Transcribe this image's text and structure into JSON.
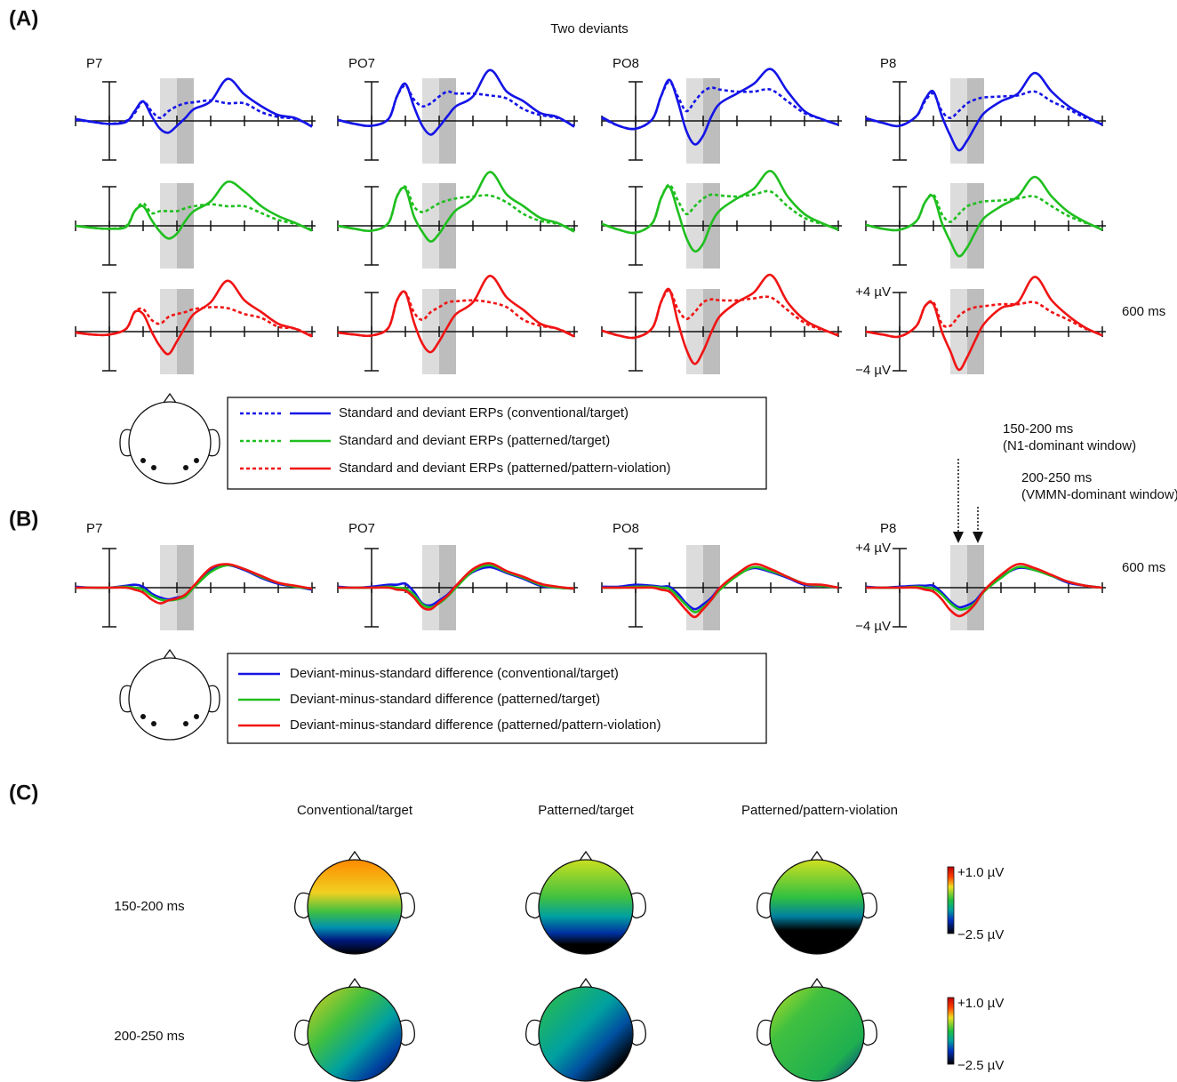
{
  "panel_labels": [
    "(A)",
    "(B)",
    "(C)"
  ],
  "chart_data": [
    {
      "type": "line",
      "title": "Two deviants",
      "electrodes": [
        "P7",
        "PO7",
        "PO8",
        "P8"
      ],
      "x": [
        -100,
        -50,
        0,
        50,
        75,
        100,
        125,
        150,
        175,
        200,
        225,
        250,
        300,
        350,
        400,
        450,
        500,
        550,
        600
      ],
      "xlim": [
        -100,
        600
      ],
      "ylim": [
        -4,
        4
      ],
      "xticks": [
        -100,
        0,
        100,
        200,
        300,
        400,
        500,
        600
      ],
      "xlabel": "600 ms",
      "yticks": [
        {
          "value": 4,
          "label": "+4 µV"
        },
        {
          "value": -4,
          "label": "−4 µV"
        }
      ],
      "windows": [
        [
          150,
          200
        ],
        [
          200,
          250
        ]
      ],
      "series": [
        {
          "name": "Standard and deviant ERPs (conventional/target)",
          "color": "#1414e6",
          "standard": [
            [
              0.1,
              -0.1,
              -0.3,
              0,
              0.8,
              2.0,
              1.0,
              0.3,
              1.0,
              1.5,
              1.8,
              1.9,
              2.1,
              1.8,
              1.8,
              0.9,
              0.4,
              0.2,
              -0.5
            ],
            [
              0.1,
              -0.3,
              -0.5,
              0.2,
              2.5,
              3.6,
              2.2,
              1.5,
              1.8,
              2.5,
              3.0,
              2.8,
              2.8,
              2.6,
              2.3,
              1.2,
              0.6,
              0.3,
              -0.5
            ],
            [
              0.3,
              -0.5,
              -0.8,
              0.2,
              2.5,
              4.0,
              2.5,
              1.0,
              2.0,
              3.0,
              3.4,
              3.2,
              3.0,
              3.0,
              3.2,
              2.0,
              0.8,
              0.2,
              -0.4
            ],
            [
              0.2,
              -0.2,
              -0.5,
              0.5,
              2.0,
              2.8,
              1.0,
              0.3,
              1.0,
              1.8,
              2.2,
              2.4,
              2.5,
              2.6,
              3.0,
              2.0,
              1.2,
              0.3,
              -0.3
            ]
          ],
          "deviant": [
            [
              0.2,
              -0.1,
              -0.3,
              -0.1,
              1.0,
              2.0,
              0.5,
              -0.8,
              -1.2,
              -0.5,
              0.3,
              1.2,
              2.0,
              4.3,
              2.7,
              1.5,
              0.6,
              0.3,
              -0.6
            ],
            [
              0.1,
              -0.3,
              -0.5,
              0.2,
              2.5,
              3.8,
              1.5,
              -0.5,
              -1.4,
              -0.6,
              0.5,
              1.5,
              2.5,
              5.2,
              3.0,
              2.0,
              0.8,
              0.4,
              -0.6
            ],
            [
              0.4,
              -0.5,
              -0.8,
              0.2,
              2.5,
              4.2,
              2.0,
              -1.0,
              -2.4,
              -1.5,
              0.5,
              1.8,
              2.8,
              3.8,
              5.3,
              3.0,
              1.0,
              0.2,
              -0.4
            ],
            [
              0.3,
              -0.2,
              -0.5,
              0.5,
              2.2,
              3.0,
              0.5,
              -1.5,
              -3.0,
              -2.0,
              -0.5,
              0.8,
              2.0,
              2.8,
              4.9,
              3.0,
              1.5,
              0.5,
              -0.4
            ]
          ]
        },
        {
          "name": "Standard and deviant ERPs (patterned/target)",
          "color": "#1fbf1f",
          "standard": [
            [
              0,
              -0.2,
              -0.3,
              0,
              1.5,
              2.3,
              1.3,
              1.5,
              1.5,
              1.5,
              1.8,
              2.0,
              2.2,
              2.0,
              2.0,
              1.3,
              0.6,
              0.2,
              -0.4
            ],
            [
              0,
              -0.3,
              -0.5,
              0.3,
              3.0,
              4.0,
              2.0,
              1.4,
              1.8,
              2.3,
              2.6,
              2.8,
              3.0,
              3.1,
              2.4,
              1.2,
              0.5,
              0.2,
              -0.4
            ],
            [
              0.2,
              -0.4,
              -0.7,
              0.3,
              2.8,
              4.2,
              2.6,
              1.2,
              2.0,
              2.8,
              3.2,
              3.1,
              3.0,
              3.2,
              3.5,
              2.0,
              0.8,
              0.2,
              -0.3
            ],
            [
              0.1,
              -0.3,
              -0.4,
              0.5,
              2.4,
              3.2,
              1.2,
              0.4,
              1.2,
              2.0,
              2.3,
              2.5,
              2.6,
              2.8,
              3.0,
              2.0,
              1.0,
              0.3,
              -0.3
            ]
          ],
          "deviant": [
            [
              0,
              -0.2,
              -0.3,
              -0.1,
              1.5,
              2.0,
              0.6,
              -0.6,
              -1.3,
              -0.8,
              0.5,
              1.5,
              2.5,
              4.5,
              3.5,
              2.0,
              1.0,
              0.3,
              -0.5
            ],
            [
              0,
              -0.3,
              -0.5,
              0.3,
              3.0,
              3.8,
              1.0,
              -0.6,
              -1.6,
              -0.8,
              0.5,
              1.6,
              2.8,
              5.5,
              3.2,
              2.0,
              0.8,
              0.3,
              -0.6
            ],
            [
              0.2,
              -0.4,
              -0.7,
              0.3,
              2.8,
              4.0,
              1.5,
              -1.2,
              -2.6,
              -1.8,
              0.3,
              1.6,
              2.8,
              3.8,
              5.6,
              3.0,
              1.2,
              0.3,
              -0.4
            ],
            [
              0.1,
              -0.3,
              -0.4,
              0.5,
              2.4,
              3.0,
              0.3,
              -1.6,
              -3.1,
              -2.2,
              -0.6,
              0.8,
              2.0,
              3.0,
              5.0,
              3.0,
              1.4,
              0.4,
              -0.4
            ]
          ]
        },
        {
          "name": "Standard and deviant ERPs (patterned/pattern-violation)",
          "color": "#f01414",
          "standard": [
            [
              -0.1,
              -0.3,
              -0.3,
              0.3,
              2.0,
              2.3,
              1.2,
              0.8,
              1.5,
              1.8,
              2.0,
              2.3,
              2.5,
              2.4,
              1.8,
              1.4,
              0.5,
              0.3,
              -0.4
            ],
            [
              -0.1,
              -0.3,
              -0.4,
              0.4,
              3.2,
              4.0,
              2.0,
              1.2,
              2.0,
              2.5,
              3.0,
              3.1,
              3.2,
              3.0,
              2.5,
              1.2,
              0.6,
              0.3,
              -0.4
            ],
            [
              0.1,
              -0.4,
              -0.6,
              0.4,
              3.0,
              4.2,
              2.3,
              1.3,
              2.0,
              3.0,
              3.3,
              3.2,
              3.2,
              3.4,
              3.5,
              2.2,
              0.9,
              0.2,
              -0.3
            ],
            [
              0,
              -0.3,
              -0.5,
              0.6,
              2.6,
              3.0,
              0.8,
              0.6,
              1.6,
              2.2,
              2.5,
              2.6,
              2.8,
              2.8,
              3.0,
              2.0,
              1.2,
              0.3,
              -0.3
            ]
          ],
          "deviant": [
            [
              -0.1,
              -0.3,
              -0.3,
              0.3,
              2.0,
              1.8,
              0,
              -1.5,
              -2.3,
              -1.0,
              0.5,
              1.8,
              3.0,
              5.2,
              3.2,
              2.0,
              0.8,
              0.3,
              -0.5
            ],
            [
              -0.1,
              -0.3,
              -0.4,
              0.4,
              3.2,
              4.0,
              1.0,
              -1.2,
              -2.1,
              -1.0,
              0.5,
              1.8,
              3.0,
              5.7,
              3.5,
              2.2,
              0.8,
              0.3,
              -0.5
            ],
            [
              0.1,
              -0.4,
              -0.6,
              0.4,
              3.0,
              4.3,
              1.0,
              -1.8,
              -3.3,
              -2.0,
              0,
              1.6,
              3.0,
              4.0,
              5.8,
              3.0,
              1.2,
              0.3,
              -0.4
            ],
            [
              0,
              -0.3,
              -0.5,
              0.6,
              2.6,
              2.8,
              0,
              -2.0,
              -3.9,
              -2.6,
              -0.8,
              0.8,
              2.4,
              3.0,
              5.6,
              3.2,
              1.6,
              0.4,
              -0.4
            ]
          ]
        }
      ]
    },
    {
      "type": "line",
      "electrodes": [
        "P7",
        "PO7",
        "PO8",
        "P8"
      ],
      "x": [
        -100,
        -50,
        0,
        50,
        75,
        100,
        125,
        150,
        175,
        200,
        225,
        250,
        300,
        350,
        400,
        450,
        500,
        550,
        600
      ],
      "xlim": [
        -100,
        600
      ],
      "ylim": [
        -4,
        4
      ],
      "xticks": [
        -100,
        0,
        100,
        200,
        300,
        400,
        500,
        600
      ],
      "xlabel": "600 ms",
      "yticks": [
        {
          "value": 4,
          "label": "+4 µV"
        },
        {
          "value": -4,
          "label": "−4 µV"
        }
      ],
      "windows": [
        [
          150,
          200
        ],
        [
          200,
          250
        ]
      ],
      "annotations": [
        "150-200 ms",
        "(N1-dominant window)",
        "200-250 ms",
        "(VMMN-dominant window)"
      ],
      "series": [
        {
          "name": "Deviant-minus-standard difference (conventional/target)",
          "color": "#1414e6",
          "values": [
            [
              0.1,
              0,
              0,
              0.2,
              0.3,
              0.1,
              -0.6,
              -1.0,
              -1.2,
              -1.0,
              -0.8,
              0,
              1.8,
              2.3,
              1.8,
              1.0,
              0.4,
              0.1,
              -0.2
            ],
            [
              0.1,
              0,
              0.1,
              0.3,
              0.3,
              0.4,
              -0.4,
              -1.6,
              -1.8,
              -1.3,
              -0.7,
              0.2,
              1.6,
              2.1,
              1.5,
              0.9,
              0.2,
              0,
              -0.1
            ],
            [
              0.1,
              0.1,
              0.3,
              0.2,
              0.1,
              0.1,
              -0.6,
              -1.6,
              -2.2,
              -1.7,
              -1.0,
              0,
              1.3,
              2.0,
              1.6,
              1.0,
              0.3,
              0.2,
              0
            ],
            [
              0.1,
              0,
              0.1,
              0.2,
              0.2,
              0.2,
              -0.5,
              -1.4,
              -2.0,
              -1.8,
              -1.3,
              -0.3,
              1.1,
              2.0,
              1.8,
              1.2,
              0.5,
              0.2,
              0
            ]
          ]
        },
        {
          "name": "Deviant-minus-standard difference (patterned/target)",
          "color": "#1fbf1f",
          "values": [
            [
              0,
              0,
              0,
              0.1,
              0,
              -0.2,
              -0.8,
              -1.2,
              -1.3,
              -1.2,
              -0.9,
              0,
              1.6,
              2.3,
              1.9,
              1.1,
              0.5,
              0.1,
              -0.1
            ],
            [
              0,
              0,
              0,
              0.1,
              0,
              -0.1,
              -0.7,
              -1.7,
              -2.0,
              -1.6,
              -0.9,
              0,
              1.7,
              2.3,
              1.6,
              1.0,
              0.3,
              0,
              -0.1
            ],
            [
              0,
              0,
              0.1,
              0.1,
              0,
              -0.1,
              -0.9,
              -1.8,
              -2.5,
              -2.0,
              -1.2,
              -0.2,
              1.2,
              2.1,
              1.7,
              1.1,
              0.4,
              0.2,
              0
            ],
            [
              0,
              0,
              0,
              0.1,
              0,
              -0.1,
              -0.7,
              -1.6,
              -2.2,
              -2.1,
              -1.5,
              -0.4,
              1.0,
              2.1,
              1.8,
              1.2,
              0.6,
              0.2,
              0
            ]
          ]
        },
        {
          "name": "Deviant-minus-standard difference (patterned/pattern-violation)",
          "color": "#f01414",
          "values": [
            [
              0,
              0,
              0,
              0,
              -0.2,
              -0.5,
              -1.2,
              -1.6,
              -1.3,
              -1.1,
              -0.7,
              0.2,
              2.0,
              2.4,
              1.9,
              1.2,
              0.5,
              0.2,
              -0.1
            ],
            [
              0,
              0,
              0,
              0,
              -0.2,
              -0.3,
              -1.0,
              -2.0,
              -2.2,
              -1.5,
              -0.8,
              0.2,
              1.9,
              2.5,
              1.7,
              1.1,
              0.4,
              0.1,
              -0.1
            ],
            [
              0,
              0,
              0,
              0,
              -0.2,
              -0.4,
              -1.3,
              -2.3,
              -3.0,
              -2.2,
              -1.2,
              0,
              1.4,
              2.4,
              1.9,
              1.1,
              0.4,
              0.3,
              0
            ],
            [
              0,
              0,
              0,
              0,
              -0.2,
              -0.4,
              -1.2,
              -2.3,
              -2.9,
              -2.5,
              -1.6,
              -0.3,
              1.3,
              2.4,
              2.0,
              1.3,
              0.6,
              0.2,
              0
            ]
          ]
        }
      ]
    }
  ],
  "topomaps": {
    "columns": [
      "Conventional/target",
      "Patterned/target",
      "Patterned/pattern-violation"
    ],
    "rows": [
      "150-200 ms",
      "200-250 ms"
    ],
    "colorbar": {
      "max_label": "+1.0 µV",
      "min_label": "−2.5 µV"
    }
  }
}
